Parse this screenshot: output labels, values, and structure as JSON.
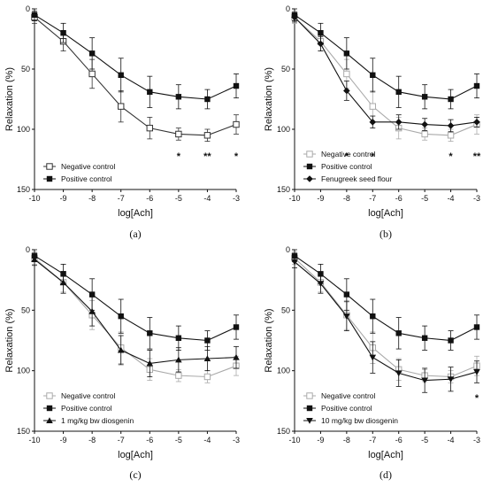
{
  "chart_data": [
    {
      "type": "line",
      "panel_label": "(a)",
      "xlabel": "log[Ach]",
      "ylabel": "Relaxation (%)",
      "xlim": [
        -10,
        -3
      ],
      "ylim": [
        0,
        150
      ],
      "y_inverted": true,
      "x_ticks": [
        "-10",
        "-9",
        "-8",
        "-7",
        "-6",
        "-5",
        "-4",
        "-3"
      ],
      "y_ticks": [
        "0",
        "50",
        "100",
        "150"
      ],
      "legend_position": "bottom-left",
      "x": [
        -10,
        -9,
        -8,
        -7,
        -6,
        -5,
        -4,
        -3
      ],
      "series": [
        {
          "name": "Negative control",
          "marker": "square-open",
          "color": "#333333",
          "values": [
            7,
            27,
            54,
            81,
            99,
            104,
            105,
            96
          ],
          "errors": [
            5,
            8,
            12,
            13,
            9,
            5,
            5,
            8
          ]
        },
        {
          "name": "Positive control",
          "marker": "square-filled",
          "color": "#111111",
          "values": [
            5,
            20,
            37,
            55,
            69,
            73,
            75,
            64
          ],
          "errors": [
            5,
            8,
            13,
            14,
            13,
            10,
            8,
            10
          ]
        }
      ],
      "annotations": [
        {
          "x": -5,
          "text": "*"
        },
        {
          "x": -4,
          "text": "**"
        },
        {
          "x": -3,
          "text": "*"
        }
      ]
    },
    {
      "type": "line",
      "panel_label": "(b)",
      "xlabel": "log[Ach]",
      "ylabel": "Relaxation (%)",
      "xlim": [
        -10,
        -3
      ],
      "ylim": [
        0,
        150
      ],
      "y_inverted": true,
      "x_ticks": [
        "-10",
        "-9",
        "-8",
        "-7",
        "-6",
        "-5",
        "-4",
        "-3"
      ],
      "y_ticks": [
        "0",
        "50",
        "100",
        "150"
      ],
      "legend_position": "bottom-left",
      "x": [
        -10,
        -9,
        -8,
        -7,
        -6,
        -5,
        -4,
        -3
      ],
      "series": [
        {
          "name": "Negative control",
          "marker": "square-open",
          "color": "#aaaaaa",
          "values": [
            7,
            27,
            54,
            81,
            99,
            104,
            105,
            96
          ],
          "errors": [
            5,
            8,
            12,
            13,
            9,
            5,
            5,
            8
          ]
        },
        {
          "name": "Positive control",
          "marker": "square-filled",
          "color": "#111111",
          "values": [
            5,
            20,
            37,
            55,
            69,
            73,
            75,
            64
          ],
          "errors": [
            5,
            8,
            13,
            14,
            13,
            10,
            8,
            10
          ]
        },
        {
          "name": "Fenugreek seed flour",
          "marker": "diamond-filled",
          "color": "#111111",
          "values": [
            7,
            29,
            68,
            94,
            94,
            96,
            97,
            94
          ],
          "errors": [
            4,
            6,
            8,
            5,
            6,
            5,
            5,
            4
          ]
        }
      ],
      "annotations": [
        {
          "x": -8,
          "text": "*"
        },
        {
          "x": -7,
          "text": "*"
        },
        {
          "x": -4,
          "text": "*"
        },
        {
          "x": -3,
          "text": "**"
        }
      ]
    },
    {
      "type": "line",
      "panel_label": "(c)",
      "xlabel": "log[Ach]",
      "ylabel": "Relaxation (%)",
      "xlim": [
        -10,
        -3
      ],
      "ylim": [
        0,
        150
      ],
      "y_inverted": true,
      "x_ticks": [
        "-10",
        "-9",
        "-8",
        "-7",
        "-6",
        "-5",
        "-4",
        "-3"
      ],
      "y_ticks": [
        "0",
        "50",
        "100",
        "150"
      ],
      "legend_position": "bottom-left",
      "x": [
        -10,
        -9,
        -8,
        -7,
        -6,
        -5,
        -4,
        -3
      ],
      "series": [
        {
          "name": "Negative control",
          "marker": "square-open",
          "color": "#aaaaaa",
          "values": [
            7,
            27,
            54,
            81,
            99,
            104,
            105,
            96
          ],
          "errors": [
            5,
            8,
            12,
            13,
            9,
            5,
            5,
            8
          ]
        },
        {
          "name": "Positive control",
          "marker": "square-filled",
          "color": "#111111",
          "values": [
            5,
            20,
            37,
            55,
            69,
            73,
            75,
            64
          ],
          "errors": [
            5,
            8,
            13,
            14,
            13,
            10,
            8,
            10
          ]
        },
        {
          "name": "1 mg/kg bw diosgenin",
          "marker": "triangle-up-filled",
          "color": "#111111",
          "values": [
            8,
            27,
            51,
            83,
            94,
            91,
            90,
            89
          ],
          "errors": [
            5,
            9,
            12,
            12,
            11,
            10,
            10,
            9
          ]
        }
      ],
      "annotations": []
    },
    {
      "type": "line",
      "panel_label": "(d)",
      "xlabel": "log[Ach]",
      "ylabel": "Relaxation (%)",
      "xlim": [
        -10,
        -3
      ],
      "ylim": [
        0,
        150
      ],
      "y_inverted": true,
      "x_ticks": [
        "-10",
        "-9",
        "-8",
        "-7",
        "-6",
        "-5",
        "-4",
        "-3"
      ],
      "y_ticks": [
        "0",
        "50",
        "100",
        "150"
      ],
      "legend_position": "bottom-left",
      "x": [
        -10,
        -9,
        -8,
        -7,
        -6,
        -5,
        -4,
        -3
      ],
      "series": [
        {
          "name": "Negative control",
          "marker": "square-open",
          "color": "#aaaaaa",
          "values": [
            7,
            27,
            54,
            81,
            99,
            104,
            105,
            96
          ],
          "errors": [
            5,
            8,
            12,
            13,
            9,
            5,
            5,
            8
          ]
        },
        {
          "name": "Positive control",
          "marker": "square-filled",
          "color": "#111111",
          "values": [
            5,
            20,
            37,
            55,
            69,
            73,
            75,
            64
          ],
          "errors": [
            5,
            8,
            13,
            14,
            13,
            10,
            8,
            10
          ]
        },
        {
          "name": "10 mg/kg bw diosgenin",
          "marker": "triangle-down-filled",
          "color": "#111111",
          "values": [
            10,
            28,
            55,
            89,
            102,
            108,
            107,
            101
          ],
          "errors": [
            5,
            8,
            12,
            13,
            11,
            10,
            10,
            9
          ]
        }
      ],
      "annotations": [
        {
          "x": -3,
          "text": "*"
        }
      ]
    }
  ]
}
